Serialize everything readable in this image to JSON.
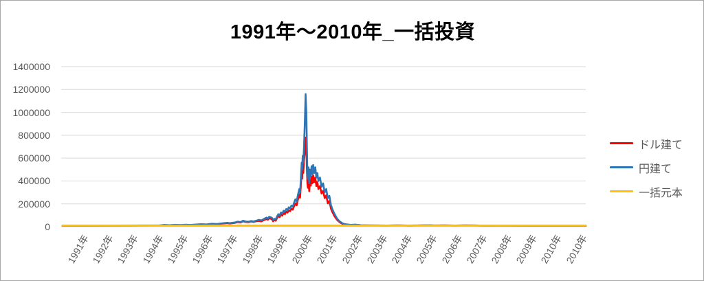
{
  "title": "1991年～2010年_一括投資",
  "colors": {
    "dollar_series": "#FF0000",
    "yen_series": "#2E75B6",
    "principal_series": "#FFC000",
    "gridline": "#D9D9D9",
    "axis_text": "#595959",
    "frame_border": "#A6A6A6",
    "title_text": "#000000"
  },
  "legend": [
    {
      "label": "ドル建て",
      "color": "#FF0000"
    },
    {
      "label": "円建て",
      "color": "#2E75B6"
    },
    {
      "label": "一括元本",
      "color": "#FFC000"
    }
  ],
  "chart_data": {
    "type": "line",
    "title": "1991年～2010年_一括投資",
    "xlabel": "",
    "ylabel": "",
    "ylim": [
      0,
      1400000
    ],
    "y_ticks": [
      0,
      200000,
      400000,
      600000,
      800000,
      1000000,
      1200000,
      1400000
    ],
    "x_labels": [
      "1991年",
      "1992年",
      "1993年",
      "1994年",
      "1995年",
      "1996年",
      "1997年",
      "1998年",
      "1999年",
      "2000年",
      "2001年",
      "2002年",
      "2003年",
      "2004年",
      "2005年",
      "2006年",
      "2007年",
      "2008年",
      "2009年",
      "2010年",
      "2010年"
    ],
    "grid": true,
    "legend_position": "right",
    "series": [
      {
        "name": "ドル建て",
        "color": "#FF0000",
        "width": 2.6,
        "points": [
          [
            0.0,
            8300
          ],
          [
            0.05,
            8700
          ],
          [
            0.1,
            9200
          ],
          [
            0.15,
            10100
          ],
          [
            0.185,
            11000
          ],
          [
            0.195,
            14500
          ],
          [
            0.205,
            12800
          ],
          [
            0.215,
            15500
          ],
          [
            0.225,
            13800
          ],
          [
            0.235,
            16500
          ],
          [
            0.245,
            14700
          ],
          [
            0.255,
            17500
          ],
          [
            0.265,
            20000
          ],
          [
            0.275,
            18400
          ],
          [
            0.285,
            23500
          ],
          [
            0.295,
            22000
          ],
          [
            0.305,
            27500
          ],
          [
            0.315,
            31000
          ],
          [
            0.32,
            28500
          ],
          [
            0.33,
            34500
          ],
          [
            0.335,
            41000
          ],
          [
            0.34,
            36500
          ],
          [
            0.345,
            47500
          ],
          [
            0.35,
            42000
          ],
          [
            0.355,
            39500
          ],
          [
            0.36,
            45500
          ],
          [
            0.365,
            42000
          ],
          [
            0.37,
            47500
          ],
          [
            0.375,
            51000
          ],
          [
            0.38,
            47000
          ],
          [
            0.385,
            58000
          ],
          [
            0.39,
            68000
          ],
          [
            0.3925,
            61000
          ],
          [
            0.395,
            75000
          ],
          [
            0.4,
            66000
          ],
          [
            0.4025,
            48000
          ],
          [
            0.405,
            60000
          ],
          [
            0.4075,
            52000
          ],
          [
            0.41,
            76000
          ],
          [
            0.4125,
            93500
          ],
          [
            0.415,
            85000
          ],
          [
            0.4175,
            106000
          ],
          [
            0.42,
            98000
          ],
          [
            0.4225,
            119000
          ],
          [
            0.425,
            110000
          ],
          [
            0.4275,
            132000
          ],
          [
            0.43,
            123000
          ],
          [
            0.4325,
            144000
          ],
          [
            0.435,
            136000
          ],
          [
            0.4375,
            157000
          ],
          [
            0.44,
            149000
          ],
          [
            0.4425,
            178000
          ],
          [
            0.445,
            204000
          ],
          [
            0.4475,
            187000
          ],
          [
            0.45,
            238000
          ],
          [
            0.4525,
            280000
          ],
          [
            0.454,
            255000
          ],
          [
            0.4555,
            360000
          ],
          [
            0.457,
            470000
          ],
          [
            0.458,
            420000
          ],
          [
            0.459,
            520000
          ],
          [
            0.46,
            470000
          ],
          [
            0.4615,
            580000
          ],
          [
            0.463,
            640000
          ],
          [
            0.4645,
            780000
          ],
          [
            0.466,
            680000
          ],
          [
            0.467,
            500000
          ],
          [
            0.468,
            380000
          ],
          [
            0.469,
            340000
          ],
          [
            0.47,
            420000
          ],
          [
            0.4715,
            310000
          ],
          [
            0.473,
            410000
          ],
          [
            0.4745,
            360000
          ],
          [
            0.476,
            440000
          ],
          [
            0.4775,
            380000
          ],
          [
            0.479,
            450000
          ],
          [
            0.481,
            390000
          ],
          [
            0.483,
            430000
          ],
          [
            0.485,
            355000
          ],
          [
            0.487,
            390000
          ],
          [
            0.489,
            330000
          ],
          [
            0.492,
            355000
          ],
          [
            0.495,
            290000
          ],
          [
            0.498,
            315000
          ],
          [
            0.501,
            250000
          ],
          [
            0.504,
            275000
          ],
          [
            0.507,
            205000
          ],
          [
            0.51,
            225000
          ],
          [
            0.513,
            158000
          ],
          [
            0.516,
            125000
          ],
          [
            0.52,
            90000
          ],
          [
            0.525,
            58000
          ],
          [
            0.53,
            38000
          ],
          [
            0.535,
            26000
          ],
          [
            0.54,
            19000
          ],
          [
            0.55,
            16000
          ],
          [
            0.56,
            18000
          ],
          [
            0.57,
            13000
          ],
          [
            0.58,
            12000
          ],
          [
            0.6,
            11000
          ],
          [
            0.62,
            10000
          ],
          [
            0.64,
            12000
          ],
          [
            0.66,
            10000
          ],
          [
            0.68,
            11000
          ],
          [
            0.7,
            13000
          ],
          [
            0.71,
            11000
          ],
          [
            0.73,
            12000
          ],
          [
            0.75,
            10000
          ],
          [
            0.77,
            12000
          ],
          [
            0.79,
            11000
          ],
          [
            0.81,
            9000
          ],
          [
            0.83,
            10000
          ],
          [
            0.86,
            9000
          ],
          [
            0.9,
            8000
          ],
          [
            0.94,
            8000
          ],
          [
            1.0,
            8000
          ]
        ]
      },
      {
        "name": "円建て",
        "color": "#2E75B6",
        "width": 2.6,
        "points": [
          [
            0.0,
            9000
          ],
          [
            0.05,
            9500
          ],
          [
            0.1,
            10000
          ],
          [
            0.15,
            11000
          ],
          [
            0.185,
            12000
          ],
          [
            0.195,
            16000
          ],
          [
            0.205,
            14000
          ],
          [
            0.215,
            17000
          ],
          [
            0.225,
            15000
          ],
          [
            0.235,
            18000
          ],
          [
            0.245,
            16000
          ],
          [
            0.255,
            19000
          ],
          [
            0.265,
            22000
          ],
          [
            0.275,
            20000
          ],
          [
            0.285,
            26000
          ],
          [
            0.295,
            24000
          ],
          [
            0.305,
            30000
          ],
          [
            0.315,
            34000
          ],
          [
            0.32,
            31000
          ],
          [
            0.33,
            38000
          ],
          [
            0.335,
            45000
          ],
          [
            0.34,
            40000
          ],
          [
            0.345,
            52000
          ],
          [
            0.35,
            46000
          ],
          [
            0.355,
            43000
          ],
          [
            0.36,
            50000
          ],
          [
            0.365,
            46000
          ],
          [
            0.37,
            52000
          ],
          [
            0.375,
            60000
          ],
          [
            0.38,
            55000
          ],
          [
            0.385,
            68000
          ],
          [
            0.39,
            80000
          ],
          [
            0.3925,
            72000
          ],
          [
            0.395,
            88000
          ],
          [
            0.4,
            78000
          ],
          [
            0.4025,
            60000
          ],
          [
            0.405,
            70000
          ],
          [
            0.4075,
            64000
          ],
          [
            0.41,
            90000
          ],
          [
            0.4125,
            110000
          ],
          [
            0.415,
            100000
          ],
          [
            0.4175,
            125000
          ],
          [
            0.42,
            115000
          ],
          [
            0.4225,
            140000
          ],
          [
            0.425,
            130000
          ],
          [
            0.4275,
            155000
          ],
          [
            0.43,
            145000
          ],
          [
            0.4325,
            170000
          ],
          [
            0.435,
            160000
          ],
          [
            0.4375,
            185000
          ],
          [
            0.44,
            175000
          ],
          [
            0.4425,
            210000
          ],
          [
            0.445,
            240000
          ],
          [
            0.4475,
            220000
          ],
          [
            0.45,
            280000
          ],
          [
            0.4525,
            330000
          ],
          [
            0.454,
            300000
          ],
          [
            0.4555,
            420000
          ],
          [
            0.457,
            560000
          ],
          [
            0.458,
            500000
          ],
          [
            0.459,
            620000
          ],
          [
            0.46,
            560000
          ],
          [
            0.4615,
            700000
          ],
          [
            0.463,
            900000
          ],
          [
            0.4645,
            1160000
          ],
          [
            0.466,
            1000000
          ],
          [
            0.467,
            700000
          ],
          [
            0.468,
            480000
          ],
          [
            0.469,
            420000
          ],
          [
            0.47,
            520000
          ],
          [
            0.4715,
            380000
          ],
          [
            0.473,
            500000
          ],
          [
            0.4745,
            440000
          ],
          [
            0.476,
            530000
          ],
          [
            0.4775,
            460000
          ],
          [
            0.479,
            540000
          ],
          [
            0.481,
            470000
          ],
          [
            0.483,
            520000
          ],
          [
            0.485,
            430000
          ],
          [
            0.487,
            470000
          ],
          [
            0.489,
            400000
          ],
          [
            0.492,
            430000
          ],
          [
            0.495,
            350000
          ],
          [
            0.498,
            380000
          ],
          [
            0.501,
            300000
          ],
          [
            0.504,
            330000
          ],
          [
            0.507,
            250000
          ],
          [
            0.51,
            270000
          ],
          [
            0.513,
            190000
          ],
          [
            0.516,
            150000
          ],
          [
            0.52,
            110000
          ],
          [
            0.525,
            70000
          ],
          [
            0.53,
            45000
          ],
          [
            0.535,
            30000
          ],
          [
            0.54,
            22000
          ],
          [
            0.55,
            16000
          ],
          [
            0.56,
            18000
          ],
          [
            0.57,
            13000
          ],
          [
            0.58,
            12000
          ],
          [
            0.6,
            11000
          ],
          [
            0.62,
            10000
          ],
          [
            0.64,
            12000
          ],
          [
            0.66,
            10000
          ],
          [
            0.68,
            11000
          ],
          [
            0.7,
            13000
          ],
          [
            0.71,
            11000
          ],
          [
            0.73,
            12000
          ],
          [
            0.75,
            10000
          ],
          [
            0.77,
            12000
          ],
          [
            0.79,
            11000
          ],
          [
            0.81,
            9000
          ],
          [
            0.83,
            10000
          ],
          [
            0.86,
            9000
          ],
          [
            0.9,
            8000
          ],
          [
            0.94,
            8000
          ],
          [
            1.0,
            8000
          ]
        ]
      },
      {
        "name": "一括元本",
        "color": "#FFC000",
        "width": 2.8,
        "points": [
          [
            0.0,
            10000
          ],
          [
            1.0,
            10000
          ]
        ]
      }
    ]
  }
}
